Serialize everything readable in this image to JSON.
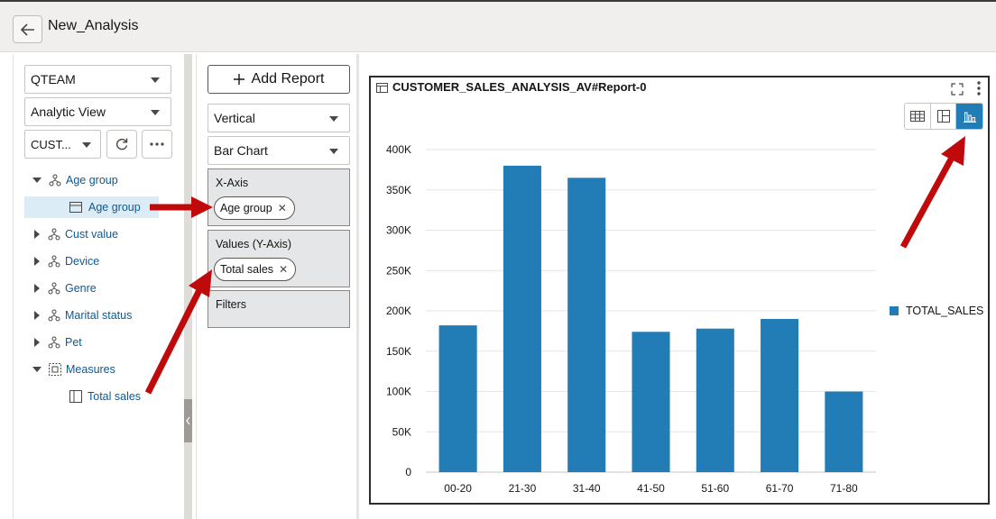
{
  "header": {
    "title": "New_Analysis",
    "back_icon": "arrow-left-icon"
  },
  "left_panel": {
    "schema_select": "QTEAM",
    "type_select": "Analytic View",
    "source_select": "CUST...",
    "tree": [
      {
        "label": "Age group",
        "kind": "hierarchy",
        "expanded": true
      },
      {
        "label": "Age group",
        "kind": "level",
        "selected": true
      },
      {
        "label": "Cust value",
        "kind": "hierarchy",
        "expanded": false
      },
      {
        "label": "Device",
        "kind": "hierarchy",
        "expanded": false
      },
      {
        "label": "Genre",
        "kind": "hierarchy",
        "expanded": false
      },
      {
        "label": "Marital status",
        "kind": "hierarchy",
        "expanded": false
      },
      {
        "label": "Pet",
        "kind": "hierarchy",
        "expanded": false
      },
      {
        "label": "Measures",
        "kind": "measures",
        "expanded": true
      },
      {
        "label": "Total sales",
        "kind": "measure"
      }
    ]
  },
  "config_panel": {
    "add_report_label": "Add Report",
    "orientation": "Vertical",
    "chart_type": "Bar Chart",
    "x_axis_label": "X-Axis",
    "x_axis_chip": "Age group",
    "values_label": "Values (Y-Axis)",
    "values_chip": "Total sales",
    "filters_label": "Filters"
  },
  "report": {
    "title": "CUSTOMER_SALES_ANALYSIS_AV#Report-0",
    "active_view": "chart"
  },
  "colors": {
    "bar": "#227cb5",
    "annotation_arrow": "#c0090a",
    "link": "#0c5a93"
  },
  "chart_data": {
    "type": "bar",
    "categories": [
      "00-20",
      "21-30",
      "31-40",
      "41-50",
      "51-60",
      "61-70",
      "71-80"
    ],
    "series": [
      {
        "name": "TOTAL_SALES",
        "values": [
          182000,
          380000,
          365000,
          174000,
          178000,
          190000,
          100000
        ]
      }
    ],
    "y_ticks": [
      "0",
      "50K",
      "100K",
      "150K",
      "200K",
      "250K",
      "300K",
      "350K",
      "400K"
    ],
    "ylim": [
      0,
      400000
    ],
    "grid": true,
    "legend_position": "right"
  }
}
